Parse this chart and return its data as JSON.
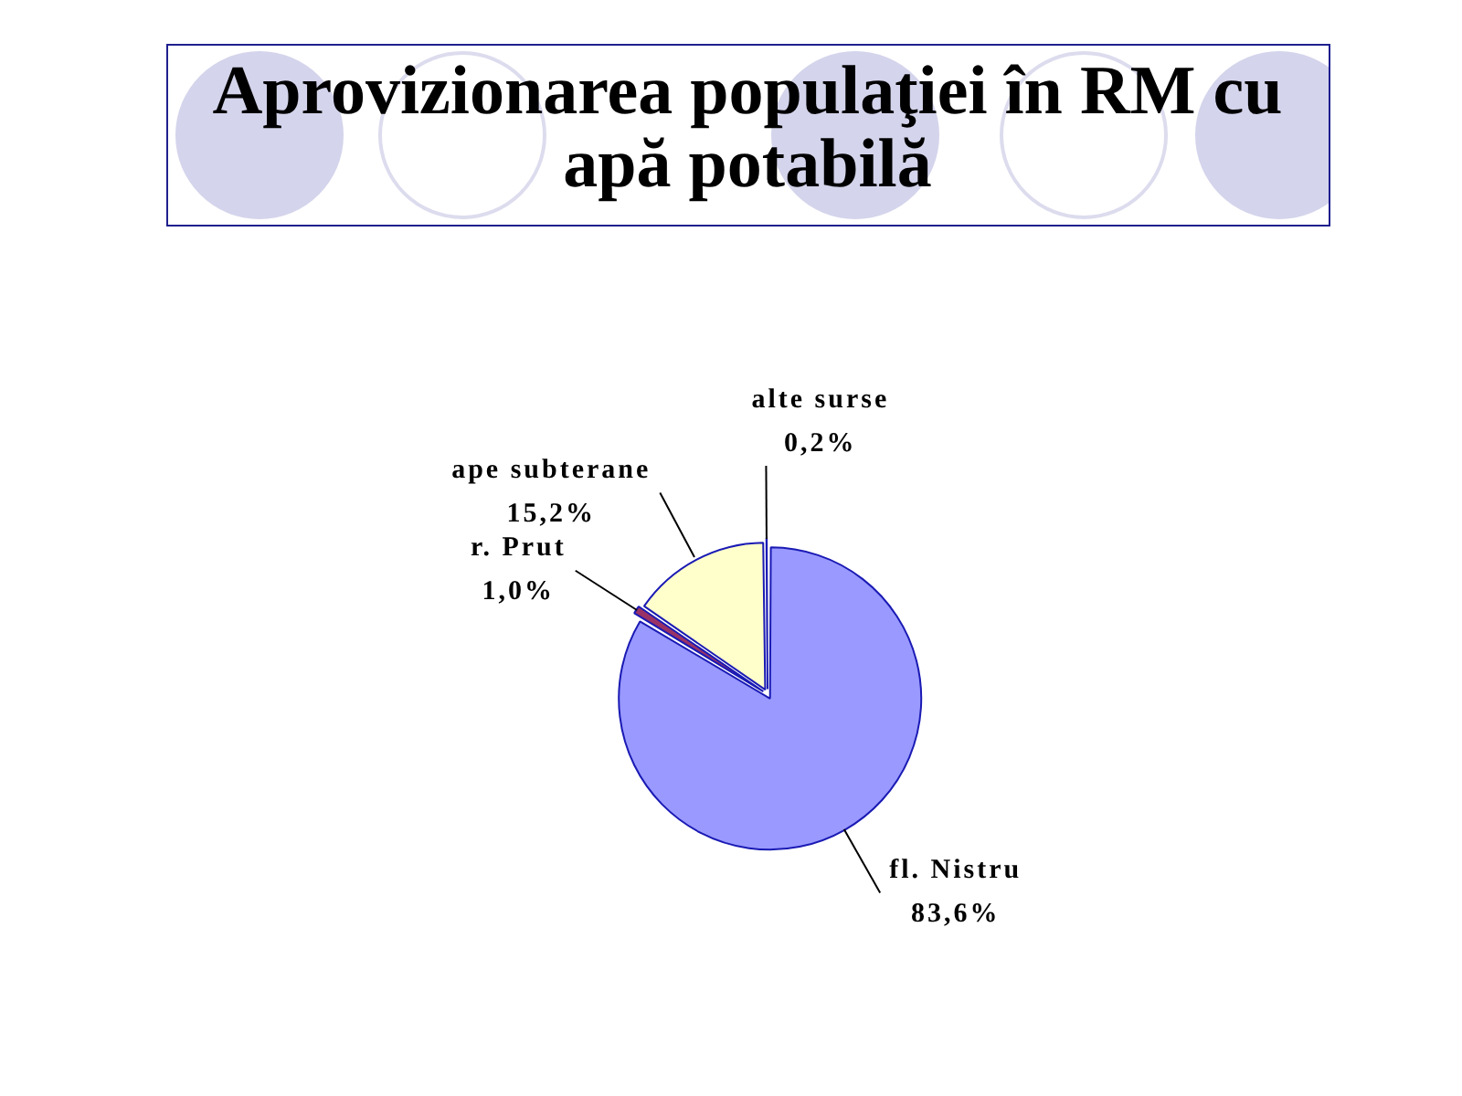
{
  "chart_data": {
    "type": "pie",
    "title": "Aprovizionarea populaţiei în RM cu apă potabilă",
    "categories": [
      "fl. Nistru",
      "r. Prut",
      "ape subterane",
      "alte surse"
    ],
    "values": [
      83.6,
      1.0,
      15.2,
      0.2
    ],
    "colors": [
      "#9999ff",
      "#993366",
      "#ffffcc",
      "#ccffff"
    ],
    "value_labels": [
      "83,6%",
      "1,0%",
      "15,2%",
      "0,2%"
    ],
    "legend": false
  }
}
